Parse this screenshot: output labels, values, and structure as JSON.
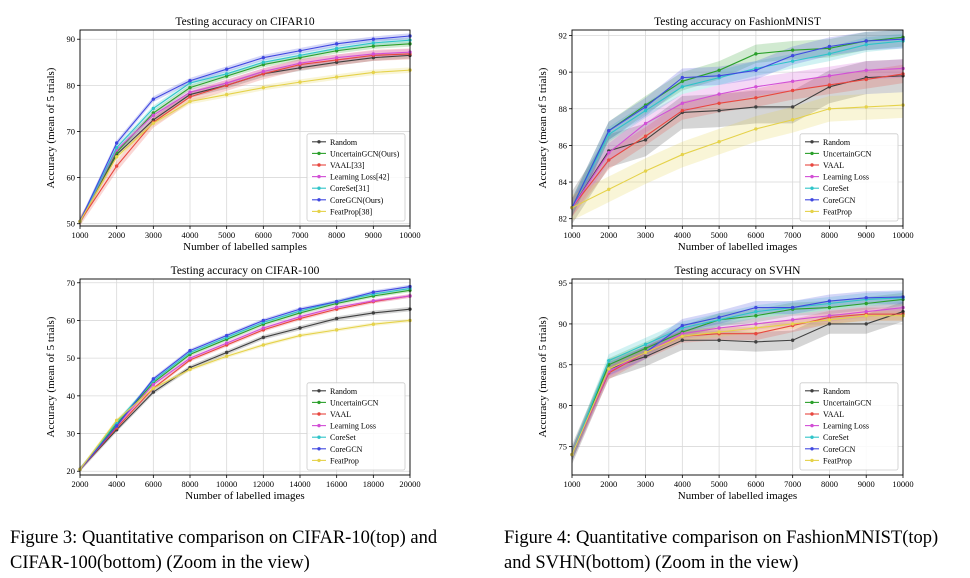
{
  "colors": {
    "Random": "#404040",
    "UncertainGCN": "#2ca02c",
    "VAAL": "#e8473f",
    "Learning Loss": "#d24fd6",
    "CoreSet": "#2fc4c9",
    "CoreGCN": "#4048e0",
    "FeatProp": "#e5d24a"
  },
  "captions": {
    "left": {
      "line1": "Figure 3:  Quantitative comparison on CIFAR-10(top) and",
      "line2": "CIFAR-100(bottom) (Zoom in the view)"
    },
    "right": {
      "line1": "Figure 4:  Quantitative comparison on FashionMNIST(top)",
      "line2": "and SVHN(bottom) (Zoom in the view)"
    }
  },
  "chart_data": [
    {
      "type": "line",
      "title": "Testing accuracy on CIFAR10",
      "xlabel": "Number of labelled samples",
      "ylabel": "Accuracy (mean of 5 trials)",
      "xlim": [
        1000,
        10000
      ],
      "ylim": [
        49.5,
        92
      ],
      "xticks": [
        1000,
        2000,
        3000,
        4000,
        5000,
        6000,
        7000,
        8000,
        9000,
        10000
      ],
      "yticks": [
        50,
        60,
        70,
        80,
        90
      ],
      "grid": true,
      "legend_position": "lower-right",
      "x": [
        1000,
        2000,
        3000,
        4000,
        5000,
        6000,
        7000,
        8000,
        9000,
        10000
      ],
      "series": [
        {
          "name": "Random",
          "key": "Random",
          "values": [
            50.5,
            65.0,
            72.5,
            78.0,
            80.0,
            82.5,
            83.8,
            85.0,
            86.0,
            86.5
          ],
          "band": 0.7
        },
        {
          "name": "UncertainGCN(Ours)",
          "key": "UncertainGCN",
          "values": [
            50.5,
            65.5,
            74.0,
            79.5,
            82.0,
            84.5,
            86.0,
            87.5,
            88.5,
            89.0
          ],
          "band": 0.6
        },
        {
          "name": "VAAL[33]",
          "key": "VAAL",
          "values": [
            50.5,
            62.5,
            72.0,
            77.5,
            80.0,
            82.5,
            84.5,
            85.5,
            86.5,
            86.8
          ],
          "band": 1.2
        },
        {
          "name": "Learning Loss[42]",
          "key": "Learning Loss",
          "values": [
            50.5,
            66.0,
            73.5,
            78.5,
            80.5,
            83.0,
            84.8,
            86.0,
            86.8,
            87.2
          ],
          "band": 0.7
        },
        {
          "name": "CoreSet[31]",
          "key": "CoreSet",
          "values": [
            50.5,
            66.5,
            75.0,
            80.5,
            82.5,
            85.0,
            86.5,
            88.0,
            89.2,
            89.8
          ],
          "band": 0.6
        },
        {
          "name": "CoreGCN(Ours)",
          "key": "CoreGCN",
          "values": [
            50.5,
            67.5,
            77.0,
            81.0,
            83.5,
            86.0,
            87.5,
            89.0,
            90.0,
            90.7
          ],
          "band": 0.6
        },
        {
          "name": "FeatProp[38]",
          "key": "FeatProp",
          "values": [
            50.5,
            64.5,
            71.8,
            76.5,
            78.0,
            79.5,
            80.7,
            81.8,
            82.8,
            83.3
          ],
          "band": 0.6
        }
      ]
    },
    {
      "type": "line",
      "title": "Testing accuracy on FashionMNIST",
      "xlabel": "Number of labelled images",
      "ylabel": "Accuracy (mean of 5 trials)",
      "xlim": [
        1000,
        10000
      ],
      "ylim": [
        81.6,
        92.3
      ],
      "xticks": [
        1000,
        2000,
        3000,
        4000,
        5000,
        6000,
        7000,
        8000,
        9000,
        10000
      ],
      "yticks": [
        82,
        84,
        86,
        88,
        90,
        92
      ],
      "grid": true,
      "legend_position": "lower-right",
      "x": [
        1000,
        2000,
        3000,
        4000,
        5000,
        6000,
        7000,
        8000,
        9000,
        10000
      ],
      "series": [
        {
          "name": "Random",
          "key": "Random",
          "values": [
            82.6,
            85.7,
            86.3,
            87.8,
            87.9,
            88.1,
            88.1,
            89.2,
            89.7,
            89.8
          ],
          "band": 0.9
        },
        {
          "name": "UncertainGCN",
          "key": "UncertainGCN",
          "values": [
            82.6,
            86.8,
            88.2,
            89.5,
            90.1,
            91.0,
            91.2,
            91.3,
            91.7,
            91.9
          ],
          "band": 0.5
        },
        {
          "name": "VAAL",
          "key": "VAAL",
          "values": [
            82.6,
            85.2,
            86.5,
            87.9,
            88.3,
            88.6,
            89.0,
            89.3,
            89.6,
            89.9
          ],
          "band": 0.5
        },
        {
          "name": "Learning Loss",
          "key": "Learning Loss",
          "values": [
            82.6,
            85.6,
            87.2,
            88.3,
            88.8,
            89.2,
            89.5,
            89.8,
            90.1,
            90.2
          ],
          "band": 0.5
        },
        {
          "name": "CoreSet",
          "key": "CoreSet",
          "values": [
            82.6,
            86.6,
            87.9,
            89.2,
            89.7,
            90.2,
            90.6,
            91.0,
            91.5,
            91.7
          ],
          "band": 0.4
        },
        {
          "name": "CoreGCN",
          "key": "CoreGCN",
          "values": [
            82.6,
            86.8,
            88.1,
            89.7,
            89.8,
            90.1,
            90.9,
            91.4,
            91.7,
            91.8
          ],
          "band": 0.5
        },
        {
          "name": "FeatProp",
          "key": "FeatProp",
          "values": [
            82.6,
            83.6,
            84.6,
            85.5,
            86.2,
            86.9,
            87.4,
            88.0,
            88.1,
            88.2
          ],
          "band": 0.7
        }
      ]
    },
    {
      "type": "line",
      "title": "Testing accuracy on CIFAR-100",
      "xlabel": "Number of labelled images",
      "ylabel": "Accuracy (mean of 5 trials)",
      "xlim": [
        2000,
        20000
      ],
      "ylim": [
        19,
        71
      ],
      "xticks": [
        2000,
        4000,
        6000,
        8000,
        10000,
        12000,
        14000,
        16000,
        18000,
        20000
      ],
      "yticks": [
        20,
        30,
        40,
        50,
        60,
        70
      ],
      "grid": true,
      "legend_position": "lower-right",
      "x": [
        2000,
        4000,
        6000,
        8000,
        10000,
        12000,
        14000,
        16000,
        18000,
        20000
      ],
      "series": [
        {
          "name": "Random",
          "key": "Random",
          "values": [
            20.5,
            31.0,
            41.0,
            47.5,
            51.5,
            55.5,
            58.0,
            60.5,
            62.0,
            63.0
          ],
          "band": 0.6
        },
        {
          "name": "UncertainGCN",
          "key": "UncertainGCN",
          "values": [
            20.5,
            32.5,
            43.5,
            51.0,
            55.0,
            59.0,
            62.0,
            64.5,
            66.5,
            68.0
          ],
          "band": 0.5
        },
        {
          "name": "VAAL",
          "key": "VAAL",
          "values": [
            20.5,
            31.5,
            42.0,
            49.5,
            53.5,
            57.5,
            60.5,
            63.0,
            65.0,
            66.5
          ],
          "band": 0.5
        },
        {
          "name": "Learning Loss",
          "key": "Learning Loss",
          "values": [
            20.5,
            32.0,
            43.0,
            50.0,
            54.0,
            58.0,
            61.0,
            63.5,
            65.2,
            66.5
          ],
          "band": 0.5
        },
        {
          "name": "CoreSet",
          "key": "CoreSet",
          "values": [
            20.5,
            33.0,
            44.0,
            51.5,
            55.5,
            59.5,
            62.5,
            65.0,
            67.0,
            68.5
          ],
          "band": 0.5
        },
        {
          "name": "CoreGCN",
          "key": "CoreGCN",
          "values": [
            20.5,
            32.0,
            44.5,
            52.0,
            56.0,
            60.0,
            63.0,
            65.0,
            67.5,
            69.0
          ],
          "band": 0.5
        },
        {
          "name": "FeatProp",
          "key": "FeatProp",
          "values": [
            20.5,
            33.5,
            42.0,
            47.0,
            50.5,
            53.5,
            56.0,
            57.5,
            59.0,
            60.0
          ],
          "band": 0.5
        }
      ]
    },
    {
      "type": "line",
      "title": "Testing accuracy on SVHN",
      "xlabel": "Number of labelled images",
      "ylabel": "Accuracy (mean of 5 trials)",
      "xlim": [
        1000,
        10000
      ],
      "ylim": [
        71.5,
        95.5
      ],
      "xticks": [
        1000,
        2000,
        3000,
        4000,
        5000,
        6000,
        7000,
        8000,
        9000,
        10000
      ],
      "yticks": [
        75,
        80,
        85,
        90,
        95
      ],
      "grid": true,
      "legend_position": "lower-right",
      "x": [
        1000,
        2000,
        3000,
        4000,
        5000,
        6000,
        7000,
        8000,
        9000,
        10000
      ],
      "series": [
        {
          "name": "Random",
          "key": "Random",
          "values": [
            74.0,
            84.5,
            86.0,
            88.0,
            88.0,
            87.8,
            88.0,
            90.0,
            90.0,
            91.5
          ],
          "band": 1.2
        },
        {
          "name": "UncertainGCN",
          "key": "UncertainGCN",
          "values": [
            74.0,
            85.0,
            87.0,
            89.0,
            90.5,
            91.0,
            91.8,
            92.0,
            92.5,
            93.0
          ],
          "band": 0.8
        },
        {
          "name": "VAAL",
          "key": "VAAL",
          "values": [
            74.0,
            84.0,
            86.5,
            88.5,
            88.8,
            88.8,
            89.8,
            90.8,
            91.2,
            91.2
          ],
          "band": 0.8
        },
        {
          "name": "Learning Loss",
          "key": "Learning Loss",
          "values": [
            74.0,
            84.2,
            86.5,
            88.8,
            89.5,
            90.0,
            90.5,
            91.0,
            91.5,
            92.0
          ],
          "band": 0.7
        },
        {
          "name": "CoreSet",
          "key": "CoreSet",
          "values": [
            74.0,
            85.5,
            87.5,
            89.5,
            90.5,
            91.5,
            92.0,
            92.5,
            93.0,
            93.2
          ],
          "band": 0.8
        },
        {
          "name": "CoreGCN",
          "key": "CoreGCN",
          "values": [
            74.0,
            84.5,
            86.5,
            89.8,
            90.8,
            92.0,
            92.0,
            92.8,
            93.2,
            93.3
          ],
          "band": 0.8
        },
        {
          "name": "FeatProp",
          "key": "FeatProp",
          "values": [
            74.0,
            84.5,
            86.5,
            88.5,
            89.0,
            89.5,
            90.0,
            90.5,
            91.0,
            91.0
          ],
          "band": 0.6
        }
      ]
    }
  ]
}
